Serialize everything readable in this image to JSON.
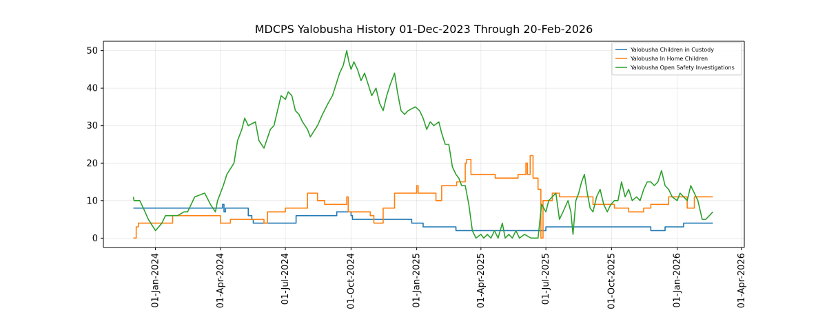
{
  "chart_data": {
    "type": "line",
    "title": "MDCPS Yalobusha History 01-Dec-2023 Through 20-Feb-2026",
    "xlabel": "",
    "ylabel": "",
    "x_range": [
      "2023-10-20",
      "2026-04-05"
    ],
    "ylim": [
      -2.5,
      52.5
    ],
    "y_ticks": [
      0,
      10,
      20,
      30,
      40,
      50
    ],
    "x_ticks": [
      {
        "date": "2024-01-01",
        "label": "01-Jan-2024"
      },
      {
        "date": "2024-04-01",
        "label": "01-Apr-2024"
      },
      {
        "date": "2024-07-01",
        "label": "01-Jul-2024"
      },
      {
        "date": "2024-10-01",
        "label": "01-Oct-2024"
      },
      {
        "date": "2025-01-01",
        "label": "01-Jan-2025"
      },
      {
        "date": "2025-04-01",
        "label": "01-Apr-2025"
      },
      {
        "date": "2025-07-01",
        "label": "01-Jul-2025"
      },
      {
        "date": "2025-10-01",
        "label": "01-Oct-2025"
      },
      {
        "date": "2026-01-01",
        "label": "01-Jan-2026"
      },
      {
        "date": "2026-04-01",
        "label": "01-Apr-2026"
      }
    ],
    "grid": true,
    "legend_position": "top-right",
    "series": [
      {
        "name": "Yalobusha Children in Custody",
        "color": "#1f77b4",
        "step": true,
        "points": [
          [
            "2023-12-01",
            8
          ],
          [
            "2024-04-03",
            8
          ],
          [
            "2024-04-04",
            9
          ],
          [
            "2024-04-06",
            7
          ],
          [
            "2024-04-08",
            8
          ],
          [
            "2024-05-09",
            8
          ],
          [
            "2024-05-10",
            6
          ],
          [
            "2024-05-15",
            5
          ],
          [
            "2024-05-17",
            4
          ],
          [
            "2024-07-16",
            6
          ],
          [
            "2024-09-11",
            7
          ],
          [
            "2024-10-01",
            6
          ],
          [
            "2024-10-03",
            5
          ],
          [
            "2024-12-25",
            4
          ],
          [
            "2025-01-10",
            3
          ],
          [
            "2025-02-25",
            2
          ],
          [
            "2025-06-01",
            2
          ],
          [
            "2025-07-01",
            3
          ],
          [
            "2025-11-25",
            2
          ],
          [
            "2025-12-15",
            3
          ],
          [
            "2026-01-10",
            4
          ],
          [
            "2026-02-20",
            4
          ]
        ]
      },
      {
        "name": "Yalobusha In Home Children",
        "color": "#ff7f0e",
        "step": true,
        "points": [
          [
            "2023-12-01",
            0
          ],
          [
            "2023-12-05",
            3
          ],
          [
            "2023-12-08",
            4
          ],
          [
            "2024-01-15",
            4
          ],
          [
            "2024-01-25",
            6
          ],
          [
            "2024-02-01",
            6
          ],
          [
            "2024-04-01",
            4
          ],
          [
            "2024-04-15",
            5
          ],
          [
            "2024-05-25",
            5
          ],
          [
            "2024-06-01",
            4
          ],
          [
            "2024-06-06",
            7
          ],
          [
            "2024-07-01",
            8
          ],
          [
            "2024-08-01",
            12
          ],
          [
            "2024-08-15",
            10
          ],
          [
            "2024-08-25",
            9
          ],
          [
            "2024-09-25",
            11
          ],
          [
            "2024-09-27",
            7
          ],
          [
            "2024-10-28",
            6
          ],
          [
            "2024-11-02",
            4
          ],
          [
            "2024-11-15",
            8
          ],
          [
            "2024-12-01",
            12
          ],
          [
            "2025-01-01",
            14
          ],
          [
            "2025-01-03",
            12
          ],
          [
            "2025-01-28",
            10
          ],
          [
            "2025-02-05",
            14
          ],
          [
            "2025-02-26",
            15
          ],
          [
            "2025-03-10",
            20
          ],
          [
            "2025-03-12",
            21
          ],
          [
            "2025-03-18",
            17
          ],
          [
            "2025-04-21",
            16
          ],
          [
            "2025-05-10",
            16
          ],
          [
            "2025-05-23",
            17
          ],
          [
            "2025-06-03",
            20
          ],
          [
            "2025-06-05",
            17
          ],
          [
            "2025-06-09",
            22
          ],
          [
            "2025-06-13",
            16
          ],
          [
            "2025-06-20",
            13
          ],
          [
            "2025-06-24",
            0
          ],
          [
            "2025-06-27",
            10
          ],
          [
            "2025-07-10",
            12
          ],
          [
            "2025-07-20",
            11
          ],
          [
            "2025-08-25",
            11
          ],
          [
            "2025-09-05",
            9
          ],
          [
            "2025-10-05",
            8
          ],
          [
            "2025-10-25",
            7
          ],
          [
            "2025-11-15",
            8
          ],
          [
            "2025-11-25",
            9
          ],
          [
            "2025-12-20",
            11
          ],
          [
            "2026-01-05",
            11
          ],
          [
            "2026-01-15",
            8
          ],
          [
            "2026-01-25",
            11
          ],
          [
            "2026-02-20",
            11
          ]
        ]
      },
      {
        "name": "Yalobusha Open Safety Investigations",
        "color": "#2ca02c",
        "step": false,
        "points": [
          [
            "2023-12-01",
            11
          ],
          [
            "2023-12-02",
            10
          ],
          [
            "2023-12-10",
            10
          ],
          [
            "2023-12-15",
            8
          ],
          [
            "2023-12-22",
            5
          ],
          [
            "2024-01-01",
            2
          ],
          [
            "2024-01-10",
            4
          ],
          [
            "2024-01-15",
            6
          ],
          [
            "2024-02-01",
            6
          ],
          [
            "2024-02-10",
            7
          ],
          [
            "2024-02-15",
            7
          ],
          [
            "2024-02-25",
            11
          ],
          [
            "2024-03-10",
            12
          ],
          [
            "2024-03-18",
            9
          ],
          [
            "2024-03-25",
            7
          ],
          [
            "2024-03-28",
            10
          ],
          [
            "2024-04-05",
            14
          ],
          [
            "2024-04-10",
            17
          ],
          [
            "2024-04-20",
            20
          ],
          [
            "2024-04-25",
            26
          ],
          [
            "2024-05-01",
            29
          ],
          [
            "2024-05-05",
            32
          ],
          [
            "2024-05-10",
            30
          ],
          [
            "2024-05-20",
            31
          ],
          [
            "2024-05-25",
            26
          ],
          [
            "2024-06-01",
            24
          ],
          [
            "2024-06-10",
            29
          ],
          [
            "2024-06-15",
            30
          ],
          [
            "2024-06-20",
            34
          ],
          [
            "2024-06-25",
            38
          ],
          [
            "2024-07-01",
            37
          ],
          [
            "2024-07-05",
            39
          ],
          [
            "2024-07-10",
            38
          ],
          [
            "2024-07-15",
            34
          ],
          [
            "2024-07-20",
            33
          ],
          [
            "2024-07-25",
            31
          ],
          [
            "2024-08-01",
            29
          ],
          [
            "2024-08-05",
            27
          ],
          [
            "2024-08-15",
            30
          ],
          [
            "2024-08-22",
            33
          ],
          [
            "2024-08-30",
            36
          ],
          [
            "2024-09-05",
            38
          ],
          [
            "2024-09-10",
            41
          ],
          [
            "2024-09-15",
            44
          ],
          [
            "2024-09-20",
            46
          ],
          [
            "2024-09-25",
            50
          ],
          [
            "2024-09-28",
            47
          ],
          [
            "2024-10-01",
            45
          ],
          [
            "2024-10-05",
            47
          ],
          [
            "2024-10-10",
            45
          ],
          [
            "2024-10-15",
            42
          ],
          [
            "2024-10-20",
            44
          ],
          [
            "2024-10-30",
            38
          ],
          [
            "2024-11-05",
            40
          ],
          [
            "2024-11-10",
            36
          ],
          [
            "2024-11-15",
            34
          ],
          [
            "2024-11-20",
            38
          ],
          [
            "2024-11-25",
            41
          ],
          [
            "2024-12-01",
            44
          ],
          [
            "2024-12-05",
            39
          ],
          [
            "2024-12-10",
            34
          ],
          [
            "2024-12-15",
            33
          ],
          [
            "2024-12-20",
            34
          ],
          [
            "2024-12-30",
            35
          ],
          [
            "2025-01-05",
            34
          ],
          [
            "2025-01-10",
            32
          ],
          [
            "2025-01-15",
            29
          ],
          [
            "2025-01-20",
            31
          ],
          [
            "2025-01-25",
            30
          ],
          [
            "2025-02-01",
            31
          ],
          [
            "2025-02-05",
            28
          ],
          [
            "2025-02-10",
            25
          ],
          [
            "2025-02-15",
            25
          ],
          [
            "2025-02-20",
            19
          ],
          [
            "2025-02-25",
            17
          ],
          [
            "2025-03-01",
            16
          ],
          [
            "2025-03-05",
            14
          ],
          [
            "2025-03-10",
            14
          ],
          [
            "2025-03-15",
            9
          ],
          [
            "2025-03-20",
            2
          ],
          [
            "2025-03-25",
            0
          ],
          [
            "2025-04-01",
            1
          ],
          [
            "2025-04-05",
            0
          ],
          [
            "2025-04-10",
            1
          ],
          [
            "2025-04-15",
            0
          ],
          [
            "2025-04-20",
            2
          ],
          [
            "2025-04-25",
            0
          ],
          [
            "2025-05-01",
            4
          ],
          [
            "2025-05-05",
            0
          ],
          [
            "2025-05-10",
            1
          ],
          [
            "2025-05-15",
            0
          ],
          [
            "2025-05-20",
            2
          ],
          [
            "2025-05-25",
            0
          ],
          [
            "2025-06-01",
            1
          ],
          [
            "2025-06-10",
            0
          ],
          [
            "2025-06-20",
            0
          ],
          [
            "2025-06-25",
            9
          ],
          [
            "2025-07-01",
            7
          ],
          [
            "2025-07-05",
            10
          ],
          [
            "2025-07-10",
            11
          ],
          [
            "2025-07-15",
            12
          ],
          [
            "2025-07-20",
            5
          ],
          [
            "2025-07-25",
            7
          ],
          [
            "2025-08-01",
            10
          ],
          [
            "2025-08-05",
            7
          ],
          [
            "2025-08-08",
            1
          ],
          [
            "2025-08-12",
            10
          ],
          [
            "2025-08-16",
            12
          ],
          [
            "2025-08-20",
            15
          ],
          [
            "2025-08-24",
            17
          ],
          [
            "2025-08-28",
            12
          ],
          [
            "2025-09-01",
            8
          ],
          [
            "2025-09-05",
            7
          ],
          [
            "2025-09-10",
            11
          ],
          [
            "2025-09-15",
            13
          ],
          [
            "2025-09-20",
            9
          ],
          [
            "2025-09-25",
            7
          ],
          [
            "2025-09-30",
            9
          ],
          [
            "2025-10-05",
            10
          ],
          [
            "2025-10-10",
            10
          ],
          [
            "2025-10-15",
            15
          ],
          [
            "2025-10-20",
            11
          ],
          [
            "2025-10-25",
            13
          ],
          [
            "2025-10-30",
            10
          ],
          [
            "2025-11-05",
            11
          ],
          [
            "2025-11-10",
            10
          ],
          [
            "2025-11-15",
            13
          ],
          [
            "2025-11-20",
            15
          ],
          [
            "2025-11-25",
            15
          ],
          [
            "2025-11-30",
            14
          ],
          [
            "2025-12-05",
            15
          ],
          [
            "2025-12-10",
            18
          ],
          [
            "2025-12-15",
            14
          ],
          [
            "2025-12-20",
            13
          ],
          [
            "2025-12-25",
            11
          ],
          [
            "2026-01-01",
            10
          ],
          [
            "2026-01-05",
            12
          ],
          [
            "2026-01-10",
            11
          ],
          [
            "2026-01-15",
            10
          ],
          [
            "2026-01-20",
            14
          ],
          [
            "2026-01-25",
            12
          ],
          [
            "2026-01-30",
            10
          ],
          [
            "2026-02-05",
            5
          ],
          [
            "2026-02-10",
            5
          ],
          [
            "2026-02-15",
            6
          ],
          [
            "2026-02-20",
            7
          ]
        ]
      }
    ]
  }
}
